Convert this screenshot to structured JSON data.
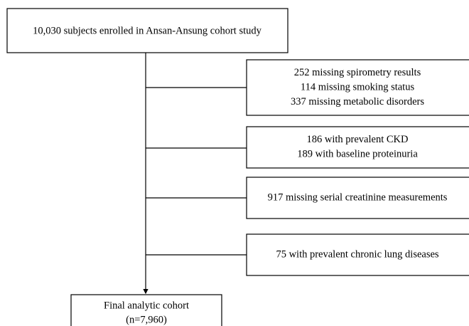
{
  "start": {
    "label": "10,030 subjects enrolled in Ansan-Ansung cohort study"
  },
  "exclusions": [
    {
      "lines": [
        "252 missing spirometry results",
        "114 missing smoking status",
        "337 missing metabolic disorders"
      ]
    },
    {
      "lines": [
        "186 with prevalent CKD",
        "189 with baseline proteinuria"
      ]
    },
    {
      "lines": [
        "917 missing serial creatinine measurements"
      ]
    },
    {
      "lines": [
        "75 with prevalent chronic lung diseases"
      ]
    }
  ],
  "final": {
    "lines": [
      "Final analytic cohort",
      "(n=7,960)"
    ]
  }
}
